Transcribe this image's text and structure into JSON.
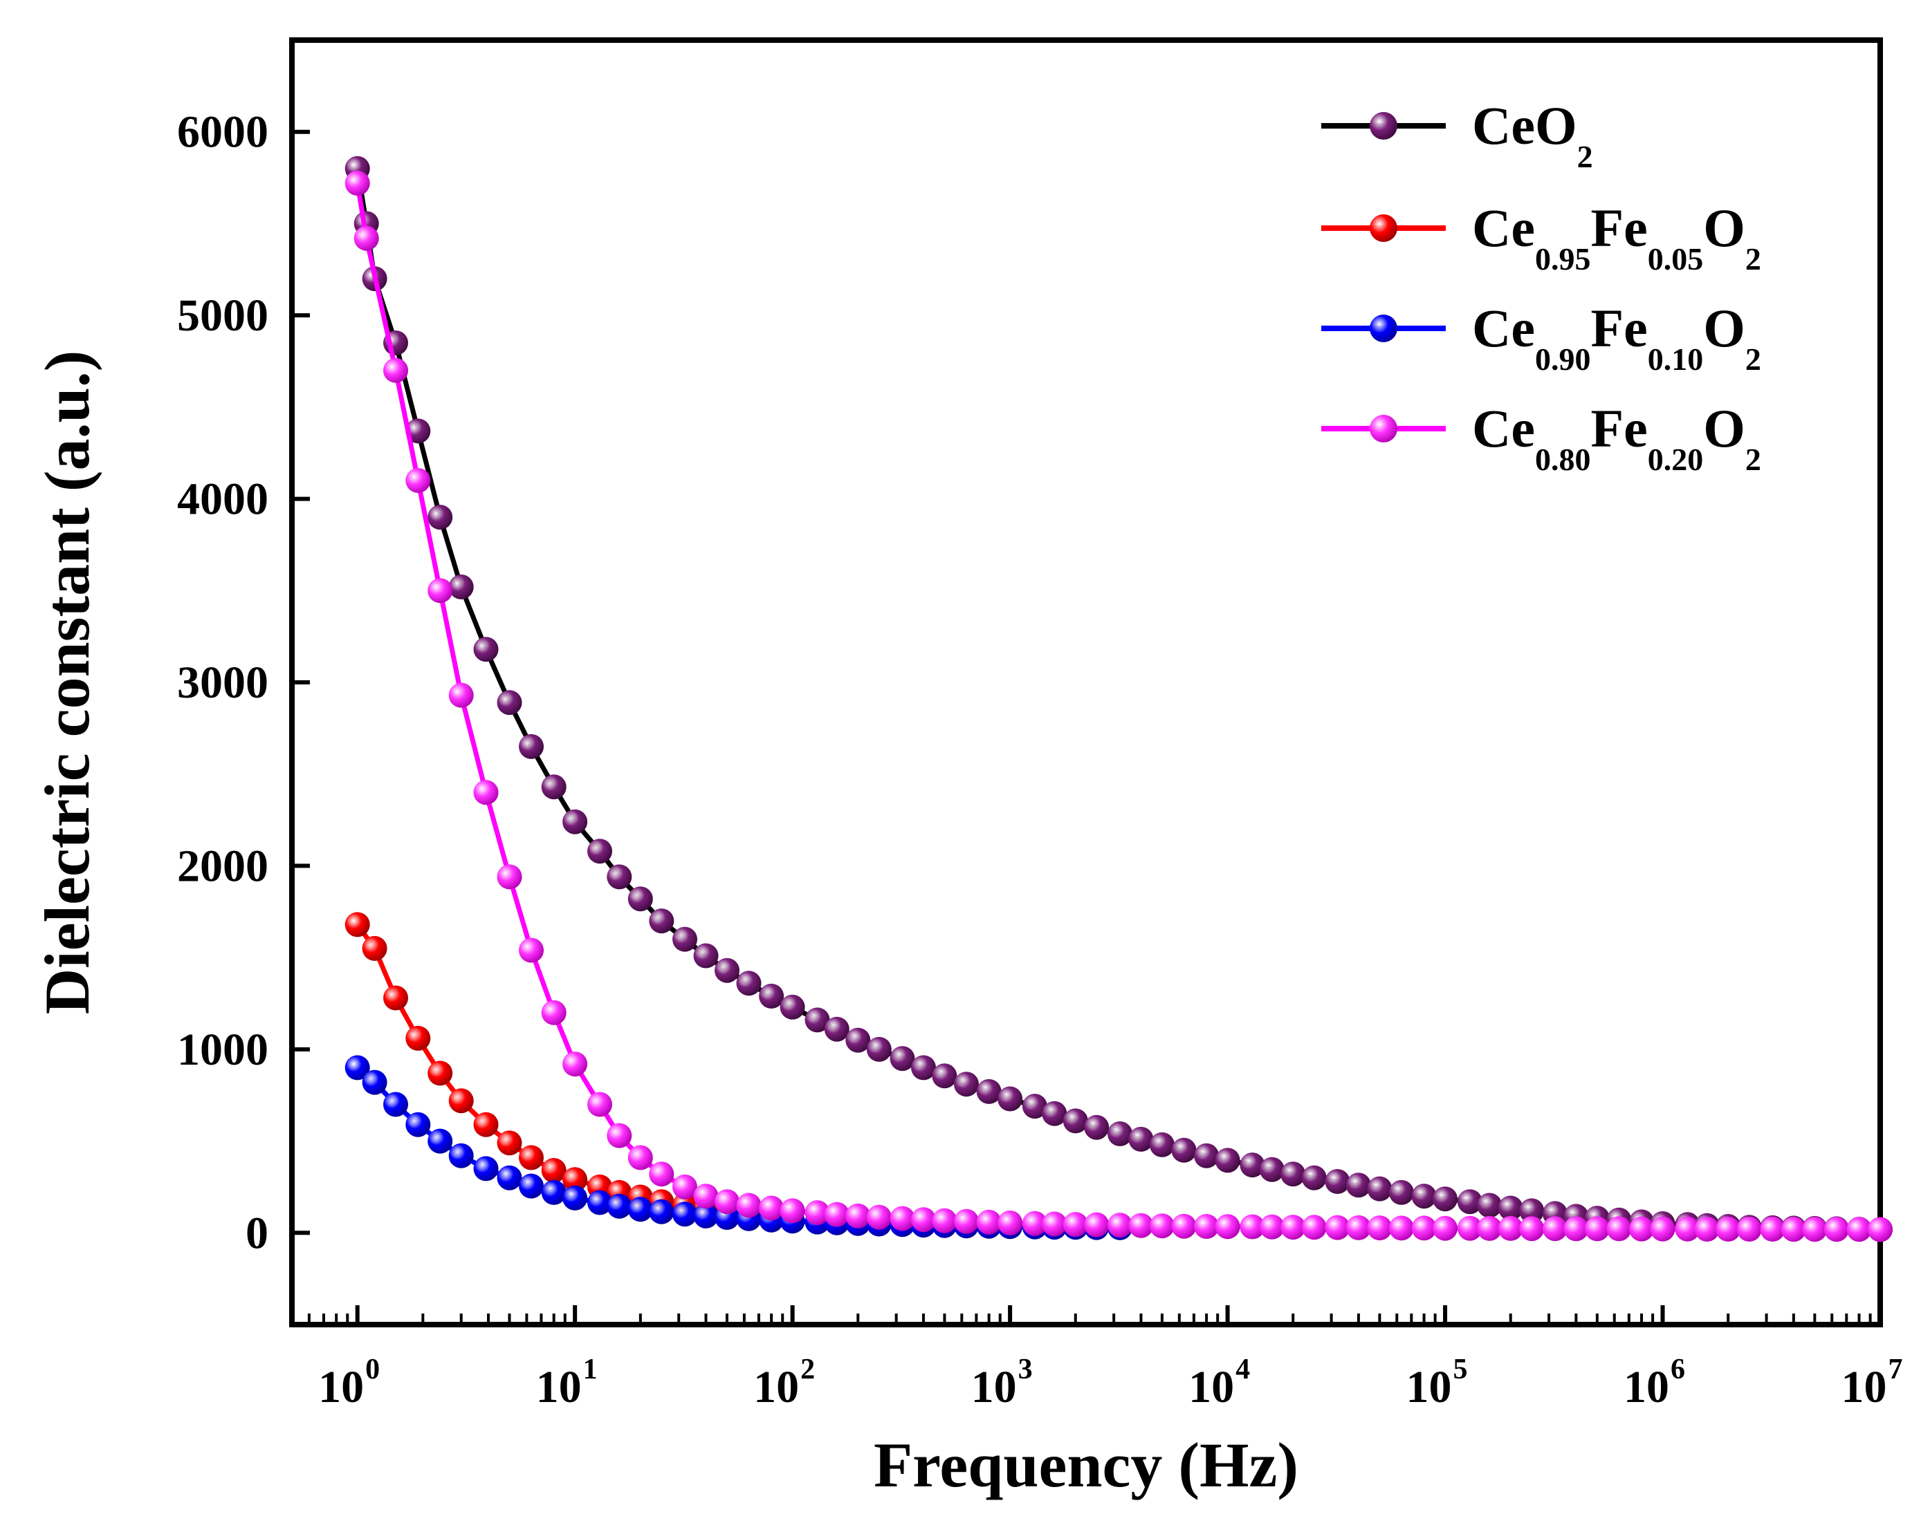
{
  "chart_data": {
    "type": "line",
    "title": "",
    "xlabel": "Frequency (Hz)",
    "ylabel": "Dielectric constant (a.u.)",
    "xscale": "log",
    "xlim": [
      0.5,
      10000000
    ],
    "ylim": [
      -500,
      6500
    ],
    "grid": false,
    "legend_position": "top-right",
    "x_ticks": [
      {
        "base": "10",
        "exp": "0",
        "value": 1
      },
      {
        "base": "10",
        "exp": "1",
        "value": 10
      },
      {
        "base": "10",
        "exp": "2",
        "value": 100
      },
      {
        "base": "10",
        "exp": "3",
        "value": 1000
      },
      {
        "base": "10",
        "exp": "4",
        "value": 10000
      },
      {
        "base": "10",
        "exp": "5",
        "value": 100000
      },
      {
        "base": "10",
        "exp": "6",
        "value": 1000000
      },
      {
        "base": "10",
        "exp": "7",
        "value": 10000000
      }
    ],
    "y_ticks": [
      {
        "label": "0",
        "value": 0
      },
      {
        "label": "1000",
        "value": 1000
      },
      {
        "label": "2000",
        "value": 2000
      },
      {
        "label": "3000",
        "value": 3000
      },
      {
        "label": "4000",
        "value": 4000
      },
      {
        "label": "5000",
        "value": 5000
      },
      {
        "label": "6000",
        "value": 6000
      }
    ],
    "series": [
      {
        "name": "CeO2",
        "name_parts": [
          {
            "text": "CeO",
            "sub": false
          },
          {
            "text": "2",
            "sub": true
          }
        ],
        "line_color": "#000000",
        "marker_color": "#7a1f7a",
        "x": [
          1,
          1.1,
          1.2,
          1.5,
          1.9,
          2.4,
          3,
          3.9,
          5,
          6.3,
          8,
          10,
          13,
          16,
          20,
          25,
          32,
          40,
          50,
          63,
          80,
          100,
          130,
          160,
          200,
          250,
          320,
          400,
          500,
          630,
          800,
          1000,
          1300,
          1600,
          2000,
          2500,
          3200,
          4000,
          5000,
          6300,
          8000,
          10000,
          13000,
          16000,
          20000,
          25000,
          32000,
          40000,
          50000,
          63000,
          80000,
          100000,
          130000,
          160000,
          200000,
          250000,
          320000,
          400000,
          500000,
          630000,
          800000,
          1000000,
          1300000,
          1600000,
          2000000,
          2500000,
          3200000,
          4000000,
          5000000,
          6300000,
          8000000,
          10000000
        ],
        "y": [
          5800,
          5500,
          5200,
          4850,
          4370,
          3900,
          3520,
          3180,
          2890,
          2650,
          2430,
          2240,
          2080,
          1940,
          1820,
          1700,
          1600,
          1510,
          1430,
          1360,
          1290,
          1230,
          1160,
          1110,
          1050,
          1000,
          950,
          900,
          855,
          810,
          770,
          730,
          690,
          650,
          610,
          575,
          540,
          510,
          480,
          450,
          420,
          395,
          370,
          345,
          320,
          300,
          280,
          260,
          240,
          220,
          200,
          185,
          170,
          150,
          135,
          120,
          105,
          90,
          80,
          70,
          60,
          50,
          45,
          40,
          35,
          30,
          28,
          26,
          24,
          22,
          20,
          18
        ]
      },
      {
        "name": "Ce0.95Fe0.05O2",
        "name_parts": [
          {
            "text": "Ce",
            "sub": false
          },
          {
            "text": "0.95",
            "sub": true
          },
          {
            "text": "Fe",
            "sub": false
          },
          {
            "text": "0.05",
            "sub": true
          },
          {
            "text": "O",
            "sub": false
          },
          {
            "text": "2",
            "sub": true
          }
        ],
        "line_color": "#ff0000",
        "marker_color": "#ff0000",
        "x": [
          1,
          1.2,
          1.5,
          1.9,
          2.4,
          3,
          3.9,
          5,
          6.3,
          8,
          10,
          13,
          16,
          20,
          25,
          32,
          40
        ],
        "y": [
          1680,
          1550,
          1280,
          1060,
          870,
          720,
          590,
          490,
          410,
          340,
          290,
          250,
          220,
          195,
          170,
          150,
          130
        ]
      },
      {
        "name": "Ce0.90Fe0.10O2",
        "name_parts": [
          {
            "text": "Ce",
            "sub": false
          },
          {
            "text": "0.90",
            "sub": true
          },
          {
            "text": "Fe",
            "sub": false
          },
          {
            "text": "0.10",
            "sub": true
          },
          {
            "text": "O",
            "sub": false
          },
          {
            "text": "2",
            "sub": true
          }
        ],
        "line_color": "#0000ff",
        "marker_color": "#0000ff",
        "x": [
          1,
          1.2,
          1.5,
          1.9,
          2.4,
          3,
          3.9,
          5,
          6.3,
          8,
          10,
          13,
          16,
          20,
          25,
          32,
          40,
          50,
          63,
          80,
          100,
          130,
          160,
          200,
          250,
          320,
          400,
          500,
          630,
          800,
          1000,
          1300,
          1600,
          2000,
          2500,
          3200
        ],
        "y": [
          900,
          820,
          700,
          590,
          500,
          420,
          350,
          300,
          255,
          220,
          190,
          165,
          145,
          128,
          115,
          102,
          92,
          84,
          77,
          70,
          64,
          59,
          55,
          51,
          48,
          45,
          42,
          40,
          38,
          36,
          34,
          32,
          31,
          30,
          29,
          28
        ]
      },
      {
        "name": "Ce0.80Fe0.20O2",
        "name_parts": [
          {
            "text": "Ce",
            "sub": false
          },
          {
            "text": "0.80",
            "sub": true
          },
          {
            "text": "Fe",
            "sub": false
          },
          {
            "text": "0.20",
            "sub": true
          },
          {
            "text": "O",
            "sub": false
          },
          {
            "text": "2",
            "sub": true
          }
        ],
        "line_color": "#ff00ff",
        "marker_color": "#ff33ff",
        "x": [
          1,
          1.1,
          1.5,
          1.9,
          2.4,
          3,
          3.9,
          5,
          6.3,
          8,
          10,
          13,
          16,
          20,
          25,
          32,
          40,
          50,
          63,
          80,
          100,
          130,
          160,
          200,
          250,
          320,
          400,
          500,
          630,
          800,
          1000,
          1300,
          1600,
          2000,
          2500,
          3200,
          4000,
          5000,
          6300,
          8000,
          10000,
          13000,
          16000,
          20000,
          25000,
          32000,
          40000,
          50000,
          63000,
          80000,
          100000,
          130000,
          160000,
          200000,
          250000,
          320000,
          400000,
          500000,
          630000,
          800000,
          1000000,
          1300000,
          1600000,
          2000000,
          2500000,
          3200000,
          4000000,
          5000000,
          6300000,
          8000000,
          10000000
        ],
        "y": [
          5720,
          5420,
          4700,
          4100,
          3500,
          2930,
          2400,
          1940,
          1540,
          1200,
          920,
          700,
          530,
          410,
          320,
          250,
          200,
          170,
          150,
          135,
          120,
          110,
          100,
          92,
          85,
          78,
          72,
          66,
          62,
          58,
          54,
          51,
          48,
          46,
          44,
          42,
          40,
          38,
          36,
          35,
          34,
          33,
          32,
          31,
          30,
          29,
          28,
          27,
          26,
          26,
          25,
          25,
          24,
          24,
          23,
          23,
          22,
          22,
          22,
          21,
          21,
          21,
          20,
          20,
          20,
          20,
          19,
          19,
          19,
          19,
          18
        ]
      }
    ]
  }
}
